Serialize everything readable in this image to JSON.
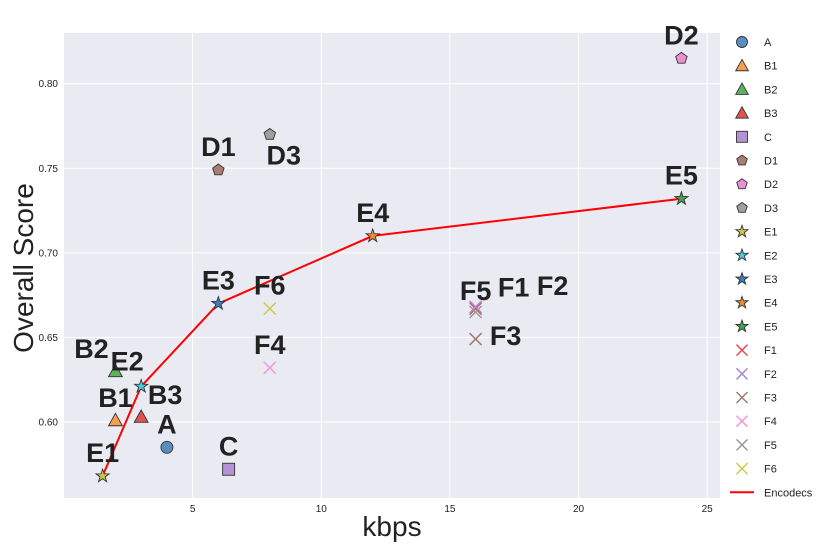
{
  "chart_data": {
    "type": "scatter",
    "xlabel": "kbps",
    "ylabel": "Overall Score",
    "xlim": [
      0,
      25.5
    ],
    "ylim": [
      0.555,
      0.83
    ],
    "xticks": [
      5,
      10,
      15,
      20,
      25
    ],
    "yticks": [
      0.6,
      0.65,
      0.7,
      0.75,
      0.8
    ],
    "xtick_labels": [
      "5",
      "10",
      "15",
      "20",
      "25"
    ],
    "ytick_labels": [
      "0.60",
      "0.65",
      "0.70",
      "0.75",
      "0.80"
    ],
    "grid": true,
    "legend_position": "right",
    "points": [
      {
        "name": "A",
        "x": 4.0,
        "y": 0.585,
        "marker": "circle",
        "color": "#5B8DBE"
      },
      {
        "name": "B1",
        "x": 2.0,
        "y": 0.601,
        "marker": "triangle",
        "color": "#F5A04E"
      },
      {
        "name": "B2",
        "x": 2.0,
        "y": 0.63,
        "marker": "triangle",
        "color": "#5BB35B"
      },
      {
        "name": "B3",
        "x": 3.0,
        "y": 0.603,
        "marker": "triangle",
        "color": "#E0534F"
      },
      {
        "name": "C",
        "x": 6.4,
        "y": 0.572,
        "marker": "square",
        "color": "#B592D6"
      },
      {
        "name": "D1",
        "x": 6.0,
        "y": 0.749,
        "marker": "pentagon",
        "color": "#A97D73"
      },
      {
        "name": "D2",
        "x": 24.0,
        "y": 0.815,
        "marker": "pentagon",
        "color": "#EE8FD6"
      },
      {
        "name": "D3",
        "x": 8.0,
        "y": 0.77,
        "marker": "pentagon",
        "color": "#A0A0A0"
      },
      {
        "name": "E1",
        "x": 1.5,
        "y": 0.568,
        "marker": "star",
        "color": "#C9C94B"
      },
      {
        "name": "E2",
        "x": 3.0,
        "y": 0.621,
        "marker": "star",
        "color": "#4FC8D6"
      },
      {
        "name": "E3",
        "x": 6.0,
        "y": 0.67,
        "marker": "star",
        "color": "#3F7CC0"
      },
      {
        "name": "E4",
        "x": 12.0,
        "y": 0.71,
        "marker": "star",
        "color": "#F08A3C"
      },
      {
        "name": "E5",
        "x": 24.0,
        "y": 0.732,
        "marker": "star",
        "color": "#48A348"
      },
      {
        "name": "F1",
        "x": 16.0,
        "y": 0.667,
        "marker": "x",
        "color": "#E04B4B"
      },
      {
        "name": "F2",
        "x": 16.0,
        "y": 0.668,
        "marker": "x",
        "color": "#A98AD0"
      },
      {
        "name": "F3",
        "x": 16.0,
        "y": 0.649,
        "marker": "x",
        "color": "#A07A72"
      },
      {
        "name": "F4",
        "x": 8.0,
        "y": 0.632,
        "marker": "x",
        "color": "#EE9AD8"
      },
      {
        "name": "F5",
        "x": 16.0,
        "y": 0.665,
        "marker": "x",
        "color": "#999999"
      },
      {
        "name": "F6",
        "x": 8.0,
        "y": 0.667,
        "marker": "x",
        "color": "#CACA4E"
      }
    ],
    "series": [
      {
        "name": "Encodecs",
        "type": "line",
        "color": "#FF0000",
        "x": [
          1.5,
          3.0,
          6.0,
          12.0,
          24.0
        ],
        "y": [
          0.568,
          0.621,
          0.67,
          0.71,
          0.732
        ]
      }
    ],
    "legend": [
      "A",
      "B1",
      "B2",
      "B3",
      "C",
      "D1",
      "D2",
      "D3",
      "E1",
      "E2",
      "E3",
      "E4",
      "E5",
      "F1",
      "F2",
      "F3",
      "F4",
      "F5",
      "F6",
      "Encodecs"
    ]
  },
  "colors": {
    "plot_background": "#EAEAF2",
    "grid": "#FFFFFF",
    "text": "#222222"
  }
}
